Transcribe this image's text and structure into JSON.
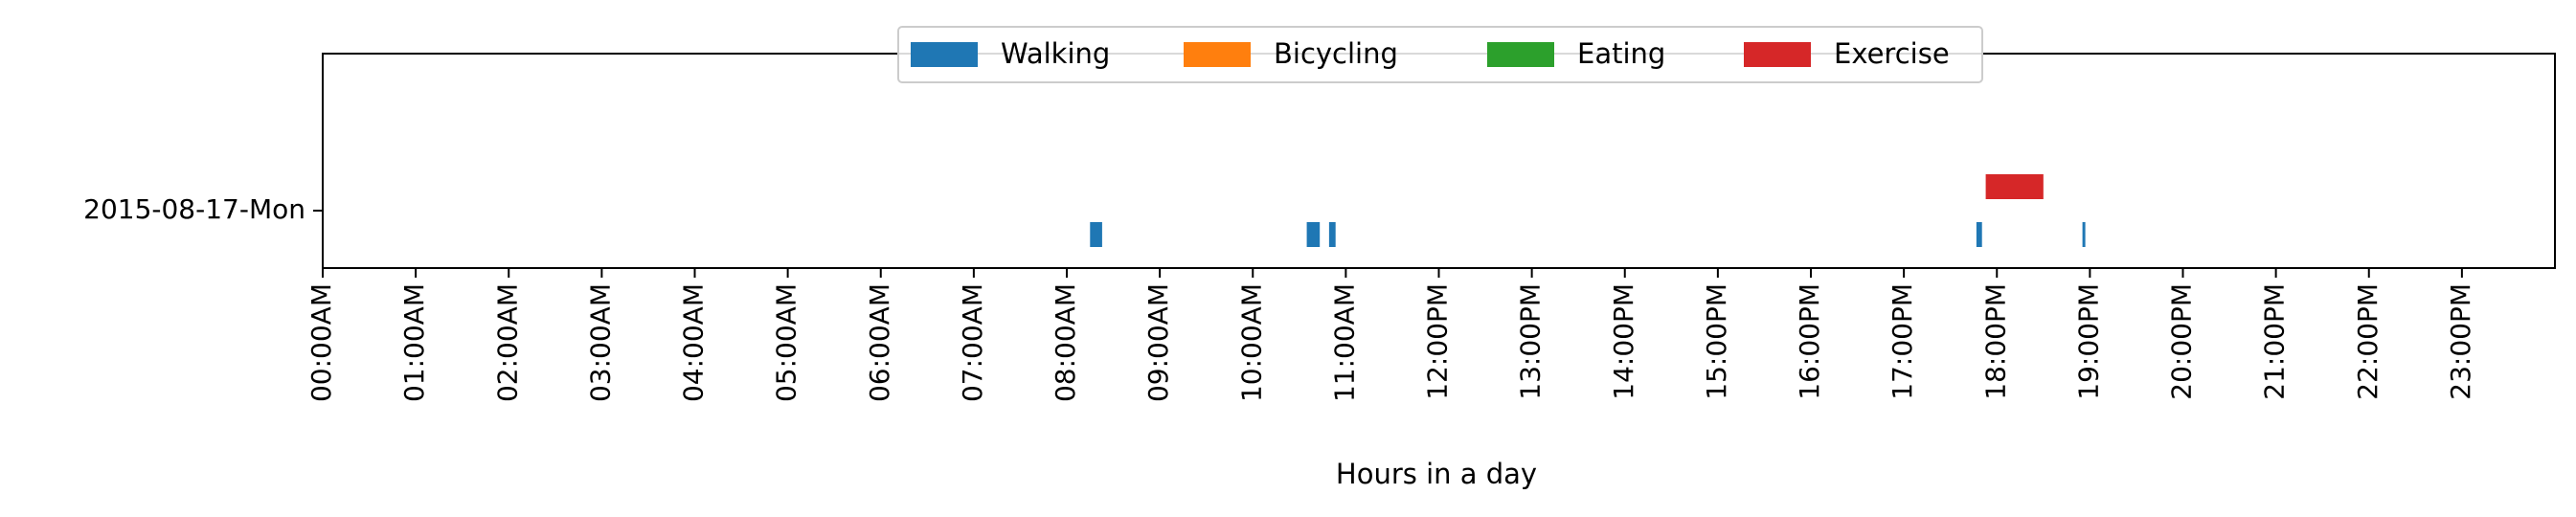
{
  "chart_data": {
    "type": "timeline",
    "title": "",
    "xlabel": "Hours in a day",
    "ylabel": "",
    "xlim": [
      0,
      24
    ],
    "grid": false,
    "legend_placement": "top-center",
    "y_categories": [
      "2015-08-17-Mon"
    ],
    "x_ticks": [
      {
        "value": 0,
        "label": "00:00AM"
      },
      {
        "value": 1,
        "label": "01:00AM"
      },
      {
        "value": 2,
        "label": "02:00AM"
      },
      {
        "value": 3,
        "label": "03:00AM"
      },
      {
        "value": 4,
        "label": "04:00AM"
      },
      {
        "value": 5,
        "label": "05:00AM"
      },
      {
        "value": 6,
        "label": "06:00AM"
      },
      {
        "value": 7,
        "label": "07:00AM"
      },
      {
        "value": 8,
        "label": "08:00AM"
      },
      {
        "value": 9,
        "label": "09:00AM"
      },
      {
        "value": 10,
        "label": "10:00AM"
      },
      {
        "value": 11,
        "label": "11:00AM"
      },
      {
        "value": 12,
        "label": "12:00PM"
      },
      {
        "value": 13,
        "label": "13:00PM"
      },
      {
        "value": 14,
        "label": "14:00PM"
      },
      {
        "value": 15,
        "label": "15:00PM"
      },
      {
        "value": 16,
        "label": "16:00PM"
      },
      {
        "value": 17,
        "label": "17:00PM"
      },
      {
        "value": 18,
        "label": "18:00PM"
      },
      {
        "value": 19,
        "label": "19:00PM"
      },
      {
        "value": 20,
        "label": "20:00PM"
      },
      {
        "value": 21,
        "label": "21:00PM"
      },
      {
        "value": 22,
        "label": "22:00PM"
      },
      {
        "value": 23,
        "label": "23:00PM"
      }
    ],
    "series": [
      {
        "name": "Walking",
        "color": "#1f77b4",
        "intervals": [
          {
            "start": 8.25,
            "end": 8.38
          },
          {
            "start": 10.58,
            "end": 10.72
          },
          {
            "start": 10.82,
            "end": 10.89
          },
          {
            "start": 17.78,
            "end": 17.84
          },
          {
            "start": 18.92,
            "end": 18.95
          }
        ]
      },
      {
        "name": "Bicycling",
        "color": "#ff7f0e",
        "intervals": []
      },
      {
        "name": "Eating",
        "color": "#2ca02c",
        "intervals": []
      },
      {
        "name": "Exercise",
        "color": "#d62728",
        "intervals": [
          {
            "start": 17.88,
            "end": 18.5
          }
        ]
      }
    ]
  }
}
